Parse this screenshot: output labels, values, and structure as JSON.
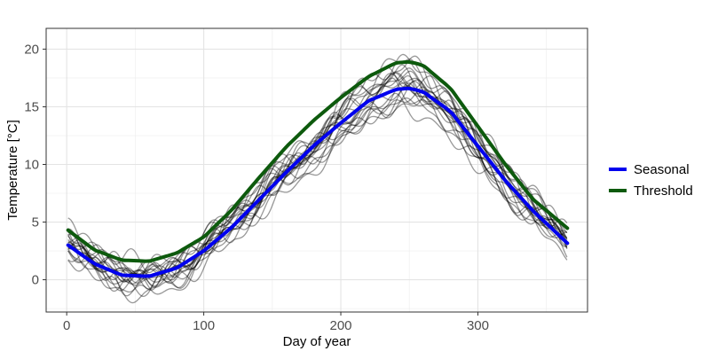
{
  "chart_data": {
    "type": "line",
    "title": "",
    "xlabel": "Day of year",
    "ylabel": "Temperature [°C]",
    "xlim": [
      -15,
      380
    ],
    "ylim": [
      -2.8,
      21.8
    ],
    "x_ticks": [
      0,
      100,
      200,
      300
    ],
    "y_ticks": [
      0,
      5,
      10,
      15,
      20
    ],
    "x_tick_labels": [
      "0",
      "100",
      "200",
      "300"
    ],
    "y_tick_labels": [
      "0",
      "5",
      "10",
      "15",
      "20"
    ],
    "grid": true,
    "legend_position": "right",
    "background_lines": {
      "count": 20,
      "color": "#000000",
      "opacity": 0.4,
      "x_range": [
        1,
        365
      ]
    },
    "series": [
      {
        "name": "Seasonal",
        "color": "#0000ee",
        "x": [
          1,
          20,
          40,
          60,
          80,
          100,
          120,
          140,
          160,
          180,
          200,
          220,
          240,
          250,
          260,
          280,
          300,
          320,
          340,
          365
        ],
        "values": [
          3.0,
          1.4,
          0.4,
          0.3,
          1.0,
          2.5,
          4.5,
          6.9,
          9.3,
          11.6,
          13.6,
          15.5,
          16.5,
          16.6,
          16.3,
          14.6,
          11.6,
          8.6,
          6.0,
          3.2
        ]
      },
      {
        "name": "Threshold",
        "color": "#0d5a0d",
        "x": [
          1,
          20,
          40,
          60,
          80,
          100,
          120,
          140,
          160,
          180,
          200,
          220,
          240,
          250,
          260,
          280,
          300,
          320,
          340,
          365
        ],
        "values": [
          4.3,
          2.6,
          1.7,
          1.6,
          2.3,
          3.7,
          6.0,
          8.8,
          11.5,
          13.8,
          15.8,
          17.6,
          18.8,
          18.9,
          18.6,
          16.6,
          13.3,
          10.0,
          7.0,
          4.5
        ]
      }
    ]
  }
}
